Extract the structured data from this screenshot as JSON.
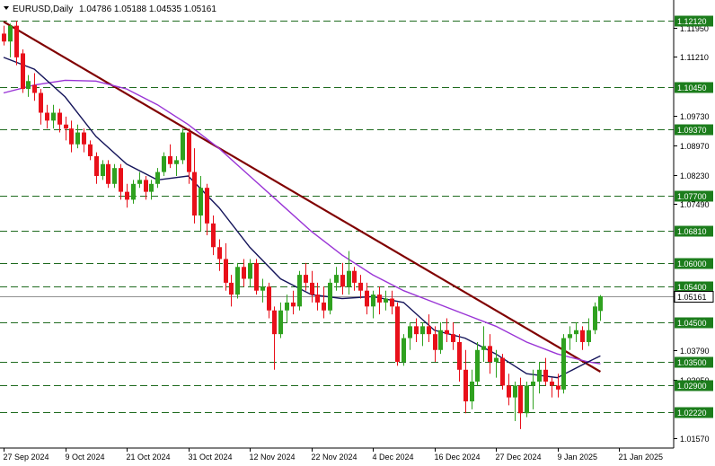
{
  "header": {
    "symbol": "EURUSD,Daily",
    "ohlc": "1.04786 1.05188 1.04535 1.05161"
  },
  "colors": {
    "bull": "#2fa11f",
    "bear": "#e8101a",
    "trendline": "#800000",
    "ma_fast": "#14145a",
    "ma_slow": "#9a35d6",
    "level": "#1f6b1f",
    "label_bg": "#1c7d1c"
  },
  "chart_data": {
    "type": "candlestick",
    "title": "EURUSD,Daily",
    "current_price": 1.05161,
    "ylim": [
      1.0132,
      1.1265
    ],
    "y_ticks": [
      "1.11950",
      "1.11210",
      "1.09730",
      "1.08970",
      "1.08230",
      "1.07490",
      "1.03790",
      "1.03050",
      "1.01570"
    ],
    "x_ticks": [
      "27 Sep 2024",
      "9 Oct 2024",
      "21 Oct 2024",
      "31 Oct 2024",
      "12 Nov 2024",
      "22 Nov 2024",
      "4 Dec 2024",
      "16 Dec 2024",
      "27 Dec 2024",
      "9 Jan 2025",
      "21 Jan 2025"
    ],
    "x_tick_bars": [
      0,
      10,
      20,
      30,
      40,
      50,
      60,
      70,
      80,
      90,
      100
    ],
    "levels": [
      "1.12120",
      "1.10450",
      "1.09370",
      "1.07700",
      "1.06810",
      "1.06000",
      "1.05400",
      "1.04500",
      "1.03500",
      "1.02900",
      "1.02220"
    ],
    "candles": [
      [
        1.118,
        1.12,
        1.115,
        1.116
      ],
      [
        1.116,
        1.1205,
        1.112,
        1.12
      ],
      [
        1.12,
        1.1212,
        1.11,
        1.112
      ],
      [
        1.113,
        1.114,
        1.103,
        1.104
      ],
      [
        1.104,
        1.1075,
        1.102,
        1.106
      ],
      [
        1.105,
        1.108,
        1.101,
        1.103
      ],
      [
        1.103,
        1.104,
        1.095,
        1.098
      ],
      [
        1.098,
        1.1,
        1.094,
        1.096
      ],
      [
        1.096,
        1.1,
        1.094,
        1.098
      ],
      [
        1.098,
        1.099,
        1.093,
        1.095
      ],
      [
        1.095,
        1.097,
        1.091,
        1.094
      ],
      [
        1.094,
        1.096,
        1.088,
        1.09
      ],
      [
        1.09,
        1.095,
        1.089,
        1.093
      ],
      [
        1.093,
        1.094,
        1.088,
        1.09
      ],
      [
        1.09,
        1.091,
        1.086,
        1.087
      ],
      [
        1.087,
        1.088,
        1.08,
        1.082
      ],
      [
        1.082,
        1.086,
        1.081,
        1.085
      ],
      [
        1.085,
        1.086,
        1.079,
        1.08
      ],
      [
        1.08,
        1.085,
        1.079,
        1.084
      ],
      [
        1.084,
        1.085,
        1.076,
        1.078
      ],
      [
        1.078,
        1.08,
        1.074,
        1.076
      ],
      [
        1.076,
        1.081,
        1.075,
        1.08
      ],
      [
        1.08,
        1.083,
        1.079,
        1.081
      ],
      [
        1.081,
        1.082,
        1.076,
        1.078
      ],
      [
        1.078,
        1.081,
        1.076,
        1.08
      ],
      [
        1.08,
        1.084,
        1.079,
        1.083
      ],
      [
        1.083,
        1.088,
        1.082,
        1.087
      ],
      [
        1.087,
        1.09,
        1.084,
        1.085
      ],
      [
        1.085,
        1.087,
        1.082,
        1.086
      ],
      [
        1.086,
        1.094,
        1.085,
        1.093
      ],
      [
        1.093,
        1.094,
        1.08,
        1.083
      ],
      [
        1.083,
        1.089,
        1.07,
        1.072
      ],
      [
        1.072,
        1.082,
        1.068,
        1.079
      ],
      [
        1.079,
        1.08,
        1.067,
        1.07
      ],
      [
        1.07,
        1.072,
        1.062,
        1.064
      ],
      [
        1.064,
        1.066,
        1.058,
        1.061
      ],
      [
        1.061,
        1.065,
        1.053,
        1.055
      ],
      [
        1.055,
        1.057,
        1.049,
        1.052
      ],
      [
        1.052,
        1.06,
        1.051,
        1.059
      ],
      [
        1.059,
        1.061,
        1.054,
        1.056
      ],
      [
        1.056,
        1.061,
        1.054,
        1.06
      ],
      [
        1.06,
        1.061,
        1.052,
        1.053
      ],
      [
        1.053,
        1.056,
        1.05,
        1.054
      ],
      [
        1.054,
        1.055,
        1.046,
        1.048
      ],
      [
        1.048,
        1.049,
        1.033,
        1.042
      ],
      [
        1.042,
        1.05,
        1.041,
        1.048
      ],
      [
        1.048,
        1.052,
        1.045,
        1.05
      ],
      [
        1.05,
        1.053,
        1.047,
        1.049
      ],
      [
        1.049,
        1.058,
        1.048,
        1.057
      ],
      [
        1.057,
        1.06,
        1.053,
        1.055
      ],
      [
        1.055,
        1.058,
        1.05,
        1.052
      ],
      [
        1.052,
        1.055,
        1.048,
        1.05
      ],
      [
        1.05,
        1.054,
        1.046,
        1.048
      ],
      [
        1.048,
        1.056,
        1.047,
        1.055
      ],
      [
        1.055,
        1.059,
        1.053,
        1.057
      ],
      [
        1.057,
        1.06,
        1.052,
        1.054
      ],
      [
        1.054,
        1.063,
        1.052,
        1.058
      ],
      [
        1.058,
        1.059,
        1.053,
        1.055
      ],
      [
        1.055,
        1.057,
        1.051,
        1.053
      ],
      [
        1.053,
        1.055,
        1.047,
        1.049
      ],
      [
        1.049,
        1.053,
        1.046,
        1.052
      ],
      [
        1.052,
        1.054,
        1.047,
        1.05
      ],
      [
        1.05,
        1.053,
        1.048,
        1.051
      ],
      [
        1.051,
        1.053,
        1.047,
        1.049
      ],
      [
        1.049,
        1.05,
        1.034,
        1.035
      ],
      [
        1.035,
        1.042,
        1.034,
        1.041
      ],
      [
        1.041,
        1.045,
        1.038,
        1.044
      ],
      [
        1.044,
        1.046,
        1.04,
        1.042
      ],
      [
        1.042,
        1.045,
        1.039,
        1.044
      ],
      [
        1.044,
        1.047,
        1.04,
        1.042
      ],
      [
        1.042,
        1.044,
        1.035,
        1.038
      ],
      [
        1.038,
        1.045,
        1.037,
        1.043
      ],
      [
        1.043,
        1.046,
        1.04,
        1.042
      ],
      [
        1.042,
        1.045,
        1.038,
        1.04
      ],
      [
        1.04,
        1.042,
        1.03,
        1.033
      ],
      [
        1.033,
        1.038,
        1.022,
        1.025
      ],
      [
        1.025,
        1.033,
        1.023,
        1.03
      ],
      [
        1.03,
        1.04,
        1.029,
        1.038
      ],
      [
        1.038,
        1.044,
        1.035,
        1.039
      ],
      [
        1.039,
        1.042,
        1.032,
        1.035
      ],
      [
        1.035,
        1.038,
        1.031,
        1.036
      ],
      [
        1.036,
        1.037,
        1.028,
        1.029
      ],
      [
        1.029,
        1.032,
        1.024,
        1.026
      ],
      [
        1.026,
        1.03,
        1.02,
        1.029
      ],
      [
        1.029,
        1.031,
        1.018,
        1.022
      ],
      [
        1.022,
        1.03,
        1.021,
        1.029
      ],
      [
        1.029,
        1.033,
        1.023,
        1.03
      ],
      [
        1.03,
        1.035,
        1.027,
        1.033
      ],
      [
        1.033,
        1.036,
        1.029,
        1.03
      ],
      [
        1.03,
        1.031,
        1.026,
        1.029
      ],
      [
        1.029,
        1.032,
        1.026,
        1.028
      ],
      [
        1.028,
        1.042,
        1.027,
        1.041
      ],
      [
        1.041,
        1.044,
        1.038,
        1.042
      ],
      [
        1.042,
        1.045,
        1.04,
        1.043
      ],
      [
        1.043,
        1.044,
        1.038,
        1.04
      ],
      [
        1.04,
        1.046,
        1.039,
        1.043
      ],
      [
        1.043,
        1.05,
        1.042,
        1.049
      ],
      [
        1.04786,
        1.05188,
        1.04535,
        1.05161
      ]
    ],
    "ma_fast": [
      [
        0,
        1.112
      ],
      [
        5,
        1.109
      ],
      [
        10,
        1.102
      ],
      [
        15,
        1.092
      ],
      [
        20,
        1.085
      ],
      [
        25,
        1.081
      ],
      [
        30,
        1.082
      ],
      [
        35,
        1.074
      ],
      [
        40,
        1.064
      ],
      [
        45,
        1.056
      ],
      [
        50,
        1.052
      ],
      [
        55,
        1.051
      ],
      [
        60,
        1.0515
      ],
      [
        65,
        1.05
      ],
      [
        70,
        1.043
      ],
      [
        75,
        1.041
      ],
      [
        80,
        1.037
      ],
      [
        85,
        1.032
      ],
      [
        90,
        1.031
      ],
      [
        95,
        1.035
      ],
      [
        97,
        1.0365
      ]
    ],
    "ma_slow": [
      [
        0,
        1.103
      ],
      [
        5,
        1.105
      ],
      [
        10,
        1.1062
      ],
      [
        15,
        1.106
      ],
      [
        20,
        1.104
      ],
      [
        25,
        1.1
      ],
      [
        30,
        1.095
      ],
      [
        35,
        1.089
      ],
      [
        40,
        1.082
      ],
      [
        45,
        1.075
      ],
      [
        50,
        1.068
      ],
      [
        55,
        1.062
      ],
      [
        60,
        1.057
      ],
      [
        65,
        1.053
      ],
      [
        70,
        1.05
      ],
      [
        75,
        1.047
      ],
      [
        80,
        1.044
      ],
      [
        85,
        1.04
      ],
      [
        90,
        1.037
      ],
      [
        95,
        1.035
      ],
      [
        97,
        1.0345
      ]
    ],
    "trendline": [
      [
        0,
        1.121
      ],
      [
        97,
        1.0325
      ]
    ]
  }
}
